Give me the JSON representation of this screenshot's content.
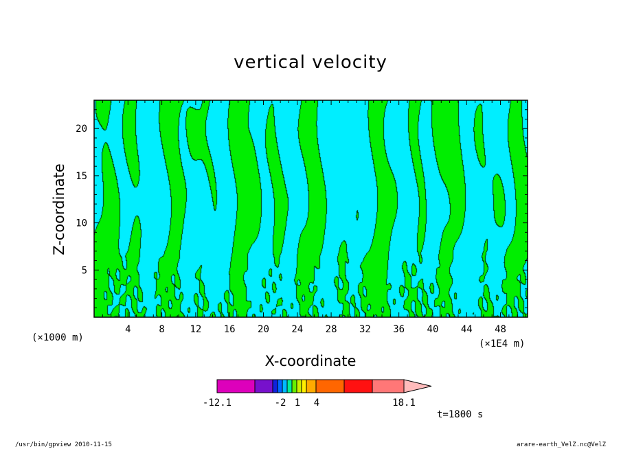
{
  "chart_data": {
    "type": "heatmap",
    "title": "vertical velocity",
    "xlabel": "X-coordinate",
    "ylabel": "Z-coordinate",
    "x_unit_left": "(×1000 m)",
    "x_unit_right": "(×1E4 m)",
    "x_ticks": [
      "4",
      "8",
      "12",
      "16",
      "20",
      "24",
      "28",
      "32",
      "36",
      "40",
      "44",
      "48"
    ],
    "x_tick_values": [
      4,
      8,
      12,
      16,
      20,
      24,
      28,
      32,
      36,
      40,
      44,
      48
    ],
    "y_ticks": [
      "5",
      "10",
      "15",
      "20"
    ],
    "y_tick_values": [
      5,
      10,
      15,
      20
    ],
    "xlim": [
      0,
      51.2
    ],
    "ylim": [
      0,
      23
    ],
    "field_colors": {
      "positive": "#00ee00",
      "negative": "#00eeff",
      "contour": "#003300"
    },
    "colorbar": {
      "levels": [
        -12.1,
        -8,
        -5,
        -2,
        -1,
        0,
        1,
        2,
        3,
        4,
        8,
        12,
        18.1
      ],
      "colors": [
        "#dd00bb",
        "#7711cc",
        "#1122dd",
        "#0066ff",
        "#00bbff",
        "#00ee99",
        "#66ee00",
        "#ccee00",
        "#ffee00",
        "#ffaa00",
        "#ff6600",
        "#ff1111",
        "#ff7777"
      ],
      "extend_color": "#ffbbbb",
      "tick_labels": [
        "-12.1",
        "-2",
        "1",
        "4",
        "18.1"
      ],
      "tick_values": [
        -12.1,
        -2,
        1,
        4,
        18.1
      ]
    },
    "time_label": "t=1800 s"
  },
  "footer": {
    "left": "/usr/bin/gpview  2010-11-15",
    "right": "arare-earth_VelZ.nc@VelZ"
  }
}
